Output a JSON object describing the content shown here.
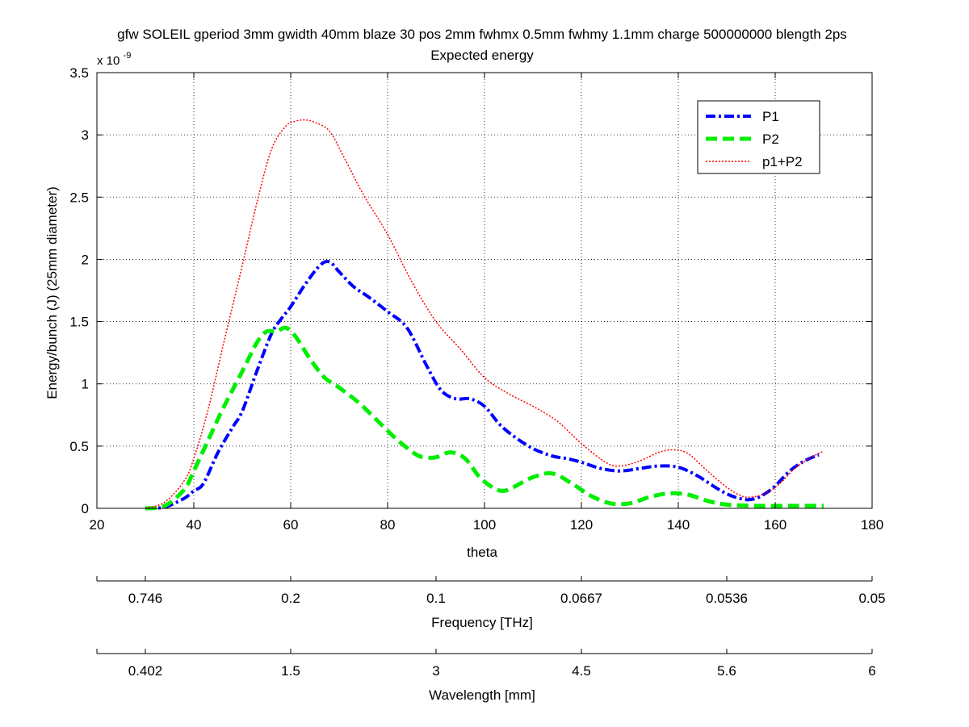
{
  "chart_data": {
    "type": "line",
    "title": "gfw SOLEIL gperiod 3mm gwidth 40mm blaze 30 pos 2mm fwhmx 0.5mm fwhmy 1.1mm charge 500000000 blength 2ps",
    "subtitle": "Expected energy",
    "xlabel": "theta",
    "ylabel": "Energy/bunch (J)  (25mm diameter)",
    "y_multiplier": "x 10",
    "y_multiplier_exp": "-9",
    "xlim": [
      20,
      180
    ],
    "ylim": [
      0,
      3.5
    ],
    "xticks": [
      20,
      40,
      60,
      80,
      100,
      120,
      140,
      160,
      180
    ],
    "yticks": [
      0,
      0.5,
      1,
      1.5,
      2,
      2.5,
      3,
      3.5
    ],
    "ytick_labels": [
      "0",
      "0.5",
      "1",
      "1.5",
      "2",
      "2.5",
      "3",
      "3.5"
    ],
    "grid": true,
    "legend_position": "top-right",
    "series": [
      {
        "name": "P1",
        "color": "#0000ff",
        "style": "dash-dot",
        "x": [
          30,
          34,
          38,
          40,
          42,
          45,
          48,
          50,
          53,
          56,
          58,
          60,
          63,
          66,
          68,
          70,
          73,
          76,
          80,
          84,
          88,
          91,
          94,
          97,
          100,
          103,
          106,
          110,
          114,
          117,
          120,
          124,
          128,
          132,
          136,
          140,
          144,
          148,
          151,
          154,
          156,
          158,
          160,
          163,
          166,
          169
        ],
        "y": [
          0.0,
          0.01,
          0.08,
          0.14,
          0.2,
          0.45,
          0.65,
          0.78,
          1.1,
          1.4,
          1.52,
          1.62,
          1.8,
          1.95,
          1.98,
          1.9,
          1.78,
          1.7,
          1.58,
          1.45,
          1.15,
          0.95,
          0.88,
          0.88,
          0.82,
          0.68,
          0.58,
          0.48,
          0.42,
          0.4,
          0.37,
          0.32,
          0.3,
          0.32,
          0.34,
          0.33,
          0.26,
          0.16,
          0.1,
          0.07,
          0.08,
          0.12,
          0.18,
          0.3,
          0.38,
          0.43
        ]
      },
      {
        "name": "P2",
        "color": "#00ee00",
        "style": "dashed",
        "x": [
          30,
          34,
          38,
          40,
          43,
          46,
          50,
          53,
          55,
          57,
          59,
          61,
          64,
          67,
          70,
          74,
          78,
          82,
          86,
          88,
          90,
          93,
          96,
          99,
          102,
          104,
          106,
          110,
          114,
          118,
          122,
          126,
          130,
          134,
          138,
          142,
          146,
          150,
          156,
          162,
          166,
          170
        ],
        "y": [
          0.0,
          0.02,
          0.15,
          0.3,
          0.55,
          0.8,
          1.1,
          1.33,
          1.42,
          1.42,
          1.45,
          1.38,
          1.2,
          1.05,
          0.97,
          0.85,
          0.7,
          0.55,
          0.43,
          0.41,
          0.41,
          0.45,
          0.4,
          0.25,
          0.16,
          0.14,
          0.17,
          0.25,
          0.28,
          0.2,
          0.1,
          0.04,
          0.04,
          0.09,
          0.12,
          0.11,
          0.06,
          0.03,
          0.02,
          0.02,
          0.02,
          0.02
        ]
      },
      {
        "name": "p1+P2",
        "color": "#ff0000",
        "style": "dotted",
        "x": [
          30,
          34,
          38,
          40,
          43,
          46,
          50,
          53,
          56,
          59,
          61,
          63,
          65,
          68,
          71,
          75,
          80,
          85,
          90,
          95,
          100,
          105,
          110,
          115,
          120,
          125,
          128,
          132,
          136,
          139,
          142,
          146,
          150,
          153,
          155,
          158,
          161,
          164,
          167,
          170
        ],
        "y": [
          0.0,
          0.05,
          0.22,
          0.4,
          0.8,
          1.3,
          1.95,
          2.45,
          2.88,
          3.07,
          3.11,
          3.12,
          3.1,
          3.03,
          2.82,
          2.52,
          2.2,
          1.82,
          1.5,
          1.28,
          1.05,
          0.92,
          0.82,
          0.7,
          0.52,
          0.37,
          0.34,
          0.38,
          0.45,
          0.47,
          0.44,
          0.3,
          0.17,
          0.1,
          0.09,
          0.12,
          0.2,
          0.32,
          0.4,
          0.46
        ]
      }
    ],
    "secondary_axes": [
      {
        "label": "Frequency [THz]",
        "tick_labels": [
          "0.746",
          "0.2",
          "0.1",
          "0.0667",
          "0.0536",
          "0.05"
        ]
      },
      {
        "label": "Wavelength [mm]",
        "tick_labels": [
          "0.402",
          "1.5",
          "3",
          "4.5",
          "5.6",
          "6"
        ]
      }
    ]
  }
}
